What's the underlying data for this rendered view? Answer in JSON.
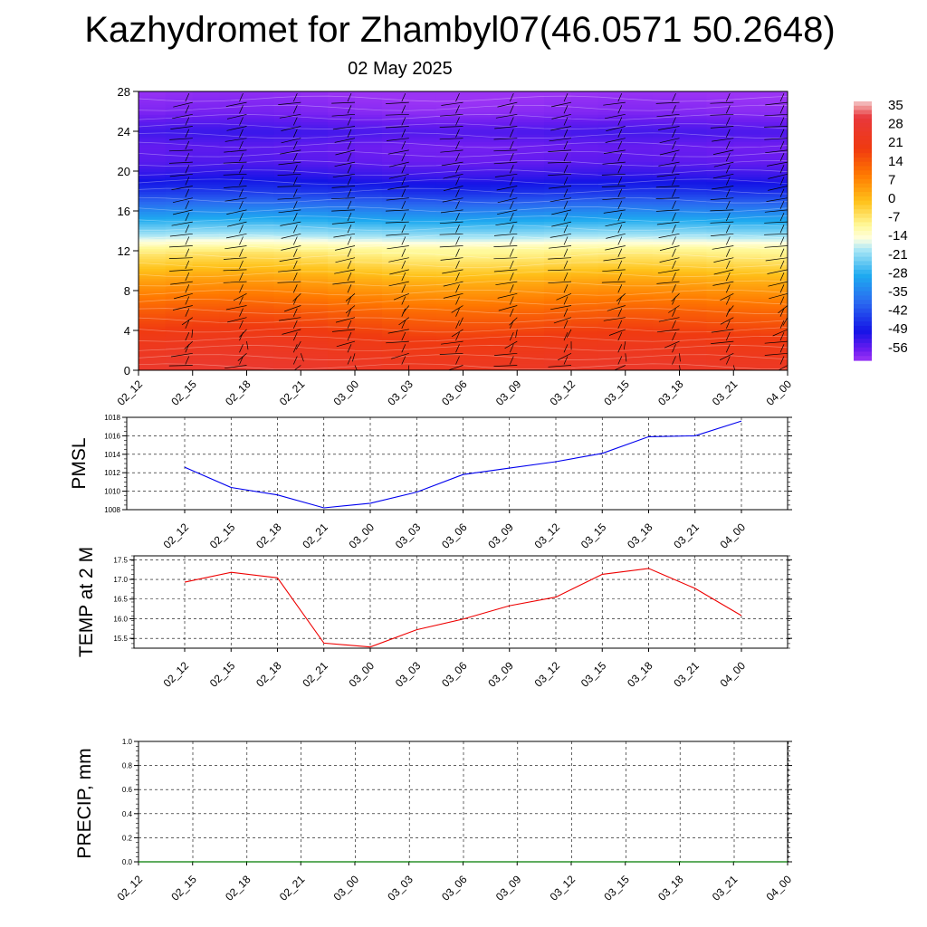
{
  "title": "Kazhydromet for Zhambyl07(46.0571 50.2648)",
  "subtitle": "02 May 2025",
  "chart_data": [
    {
      "type": "heatmap",
      "name": "temperature-height-section",
      "title": "",
      "x": [
        "02_12",
        "02_15",
        "02_18",
        "02_21",
        "03_00",
        "03_03",
        "03_06",
        "03_09",
        "03_12",
        "03_15",
        "03_18",
        "03_21",
        "04_00"
      ],
      "y_ticks": [
        0,
        4,
        8,
        12,
        16,
        20,
        24,
        28
      ],
      "ylim": [
        0,
        28
      ],
      "colorbar": {
        "labels": [
          "35",
          "28",
          "21",
          "14",
          "7",
          "0",
          "-7",
          "-14",
          "-21",
          "-28",
          "-35",
          "-42",
          "-49",
          "-56"
        ],
        "range": [
          -60,
          38
        ],
        "stops": [
          {
            "v": 38,
            "c": "#f4c9c9"
          },
          {
            "v": 32,
            "c": "#e8383c"
          },
          {
            "v": 20,
            "c": "#f03a10"
          },
          {
            "v": 10,
            "c": "#ff7a00"
          },
          {
            "v": 0,
            "c": "#ffc21a"
          },
          {
            "v": -9,
            "c": "#fff99a"
          },
          {
            "v": -14,
            "c": "#ffffe0"
          },
          {
            "v": -18,
            "c": "#aee8f5"
          },
          {
            "v": -28,
            "c": "#1eaaf0"
          },
          {
            "v": -38,
            "c": "#2a6af0"
          },
          {
            "v": -49,
            "c": "#1414e6"
          },
          {
            "v": -56,
            "c": "#6a1cf0"
          },
          {
            "v": -60,
            "c": "#9b34f5"
          }
        ]
      },
      "wind_barbs": true
    },
    {
      "type": "line",
      "name": "pmsl",
      "ylabel": "PMSL",
      "categories": [
        "02_12",
        "02_15",
        "02_18",
        "02_21",
        "03_00",
        "03_03",
        "03_06",
        "03_09",
        "03_12",
        "03_15",
        "03_18",
        "03_21",
        "04_00"
      ],
      "series": [
        {
          "values": [
            1012.6,
            1010.4,
            1009.6,
            1008.2,
            1008.7,
            1009.9,
            1011.8,
            1012.5,
            1013.2,
            1014.1,
            1015.9,
            1016.0,
            1017.6
          ],
          "color": "#0000ee"
        }
      ],
      "ylim": [
        1008,
        1018
      ],
      "y_ticks": [
        1008,
        1010,
        1012,
        1014,
        1016,
        1018
      ],
      "grid": true
    },
    {
      "type": "line",
      "name": "temp-2m",
      "ylabel": "TEMP at 2 M",
      "categories": [
        "02_12",
        "02_15",
        "02_18",
        "02_21",
        "03_00",
        "03_03",
        "03_06",
        "03_09",
        "03_12",
        "03_15",
        "03_18",
        "03_21",
        "04_00"
      ],
      "series": [
        {
          "values": [
            16.93,
            17.18,
            17.04,
            15.38,
            15.28,
            15.72,
            15.99,
            16.33,
            16.55,
            17.13,
            17.28,
            16.77,
            16.08
          ],
          "color": "#ee0000"
        }
      ],
      "ylim": [
        15.25,
        17.6
      ],
      "y_ticks": [
        15.5,
        16.0,
        16.5,
        17.0,
        17.5
      ],
      "y_tick_labels": [
        "15.5",
        "16.0",
        "16.5",
        "17.0",
        "17.5"
      ],
      "grid": true
    },
    {
      "type": "line",
      "name": "precip",
      "ylabel": "PRECIP, mm",
      "categories": [
        "02_12",
        "02_15",
        "02_18",
        "02_21",
        "03_00",
        "03_03",
        "03_06",
        "03_09",
        "03_12",
        "03_15",
        "03_18",
        "03_21",
        "04_00"
      ],
      "series": [
        {
          "values": [
            0,
            0,
            0,
            0,
            0,
            0,
            0,
            0,
            0,
            0,
            0,
            0,
            0
          ],
          "color": "#007a00"
        }
      ],
      "ylim": [
        0,
        1
      ],
      "y_ticks": [
        0,
        0.2,
        0.4,
        0.6,
        0.8,
        1.0
      ],
      "y_tick_labels": [
        "0.0",
        "0.2",
        "0.4",
        "0.6",
        "0.8",
        "1.0"
      ],
      "grid": true
    }
  ]
}
